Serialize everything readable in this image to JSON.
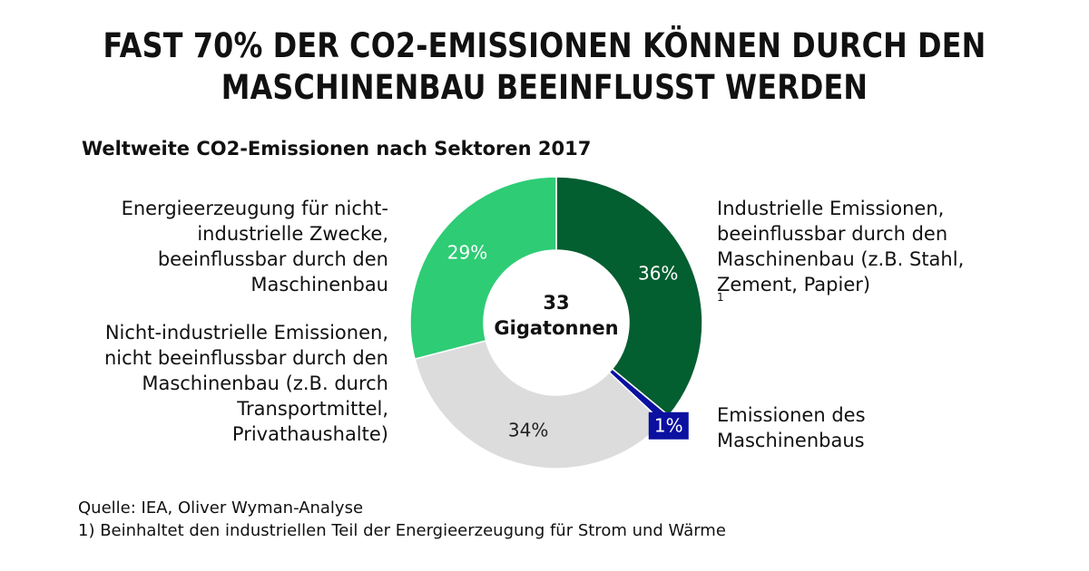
{
  "title_lines": [
    "FAST 70% DER CO2-EMISSIONEN KÖNNEN DURCH DEN",
    "MASCHINENBAU BEEINFLUSST WERDEN"
  ],
  "chart_data": {
    "type": "pie",
    "title": "Weltweite CO2-Emissionen nach Sektoren 2017",
    "center_text": [
      "33",
      "Gigatonnen"
    ],
    "slices": [
      {
        "value": 36,
        "label": "36%",
        "color": "#035e30",
        "category_lines": [
          "Industrielle Emissionen,",
          "beeinflussbar durch den",
          "Maschinenbau (z.B. Stahl,",
          "Zement, Papier)"
        ],
        "footnote_mark": "1"
      },
      {
        "value": 1,
        "label": "1%",
        "color": "#0b10a0",
        "category_lines": [
          "Emissionen des",
          "Maschinenbaus"
        ]
      },
      {
        "value": 34,
        "label": "34%",
        "color": "#dcdcdc",
        "category_lines": [
          "Nicht-industrielle Emissionen,",
          "nicht beeinflussbar durch den",
          "Maschinenbau (z.B. durch",
          "Transportmittel,",
          "Privathaushalte)"
        ]
      },
      {
        "value": 29,
        "label": "29%",
        "color": "#2ecc75",
        "category_lines": [
          "Energieerzeugung für nicht-",
          "industrielle Zwecke,",
          "beeinflussbar durch den",
          "Maschinenbau"
        ]
      }
    ]
  },
  "source_lines": [
    "Quelle: IEA, Oliver Wyman-Analyse",
    "1) Beinhaltet den industriellen Teil der Energieerzeugung für Strom und Wärme"
  ]
}
